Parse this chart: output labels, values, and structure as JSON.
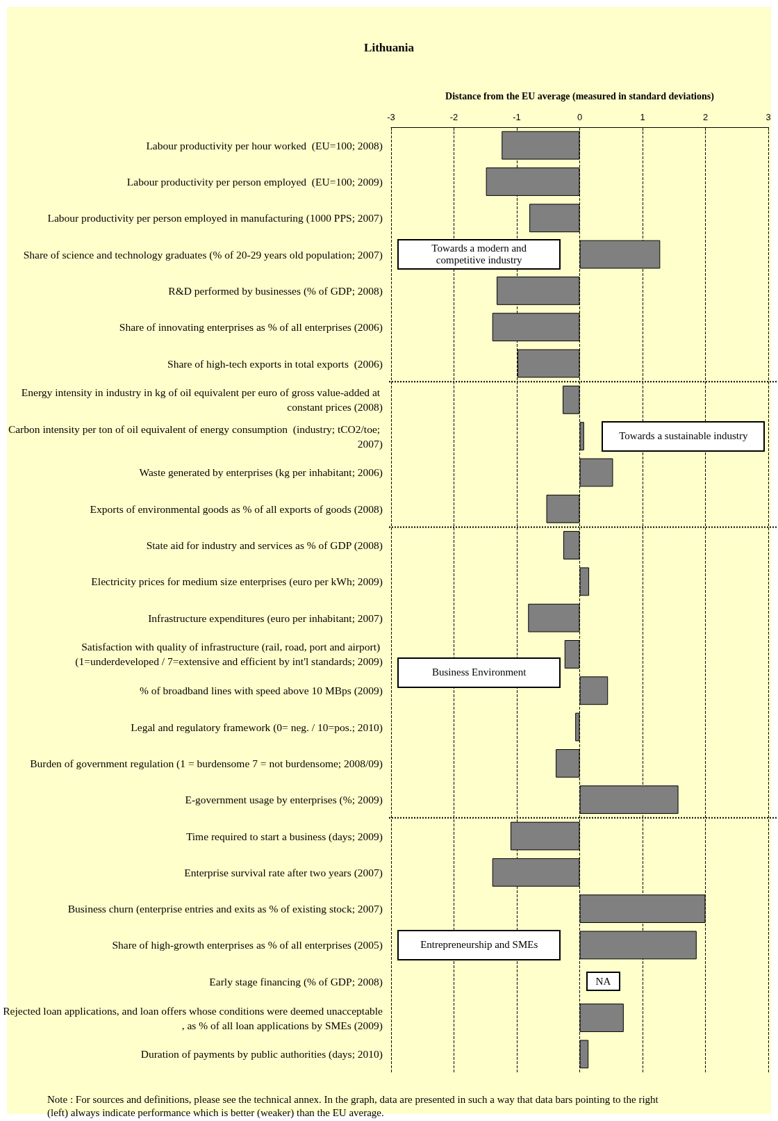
{
  "chart_data": {
    "type": "bar",
    "orientation": "horizontal",
    "title": "Lithuania",
    "xlabel": "Distance from the EU average (measured in standard deviations)",
    "categories": [
      "Labour productivity per hour worked  (EU=100; 2008)",
      "Labour productivity per person employed  (EU=100; 2009)",
      "Labour productivity per person employed in manufacturing (1000 PPS; 2007)",
      "Share of science and technology graduates (% of 20-29 years old population; 2007)",
      "R&D performed by businesses (% of GDP; 2008)",
      "Share of innovating enterprises as % of all enterprises (2006)",
      "Share of high-tech exports in total exports  (2006)",
      "Energy intensity in industry in kg of oil equivalent per euro of gross value-added at constant prices (2008)",
      "Carbon intensity per ton of oil equivalent of energy consumption  (industry; tCO2/toe; 2007)",
      "Waste generated by enterprises (kg per inhabitant; 2006)",
      "Exports of environmental goods as % of all exports of goods (2008)",
      "State aid for industry and services as % of GDP (2008)",
      "Electricity prices for medium size enterprises (euro per kWh; 2009)",
      "Infrastructure expenditures (euro per inhabitant; 2007)",
      "Satisfaction with quality of infrastructure (rail, road, port and airport) (1=underdeveloped / 7=extensive and efficient by int'l standards; 2009)",
      "% of broadband lines with speed above 10 MBps (2009)",
      "Legal and regulatory framework (0= neg. / 10=pos.; 2010)",
      "Burden of government regulation (1 = burdensome 7 = not burdensome; 2008/09)",
      "E-government usage by enterprises (%; 2009)",
      "Time required to start a business (days; 2009)",
      "Enterprise survival rate after two years (2007)",
      "Business churn (enterprise entries and exits as % of existing stock; 2007)",
      "Share of high-growth enterprises as % of all enterprises (2005)",
      "Early stage financing (% of GDP; 2008)",
      "Rejected loan applications, and loan offers whose conditions were deemed unacceptable, as % of all loan applications by SMEs (2009)",
      "Duration of payments by public authorities (days; 2010)"
    ],
    "values": [
      -1.24,
      -1.49,
      -0.8,
      1.28,
      -1.32,
      -1.39,
      -0.99,
      -0.27,
      0.07,
      0.53,
      -0.53,
      -0.26,
      0.15,
      -0.82,
      -0.24,
      0.45,
      -0.07,
      -0.38,
      1.57,
      -1.1,
      -1.39,
      2.0,
      1.86,
      null,
      0.7,
      0.14
    ],
    "color": "#808080",
    "xlim": [
      -3,
      3
    ],
    "xticks": [
      -3,
      -2,
      -1,
      0,
      1,
      2,
      3
    ],
    "grid": "x",
    "ref_lines": [
      {
        "axis": "y",
        "value": "Share of high-tech exports in total exports  (2006)",
        "line_style": "dotted"
      },
      {
        "axis": "y",
        "value": "Exports of environmental goods as % of all exports of goods (2008)",
        "line_style": "dotted"
      },
      {
        "axis": "y",
        "value": "E-government usage by enterprises (%; 2009)",
        "line_style": "dotted"
      }
    ],
    "annotations": [
      "Towards a modern and competitive industry",
      "Towards a sustainable industry",
      "Business Environment",
      "Entrepreneurship and SMEs",
      "NA",
      "Note : For sources and definitions, please see the technical annex. In the graph, data are presented in such a way that data bars pointing to the right (left) always indicate performance which is better (weaker) than the EU average."
    ]
  }
}
